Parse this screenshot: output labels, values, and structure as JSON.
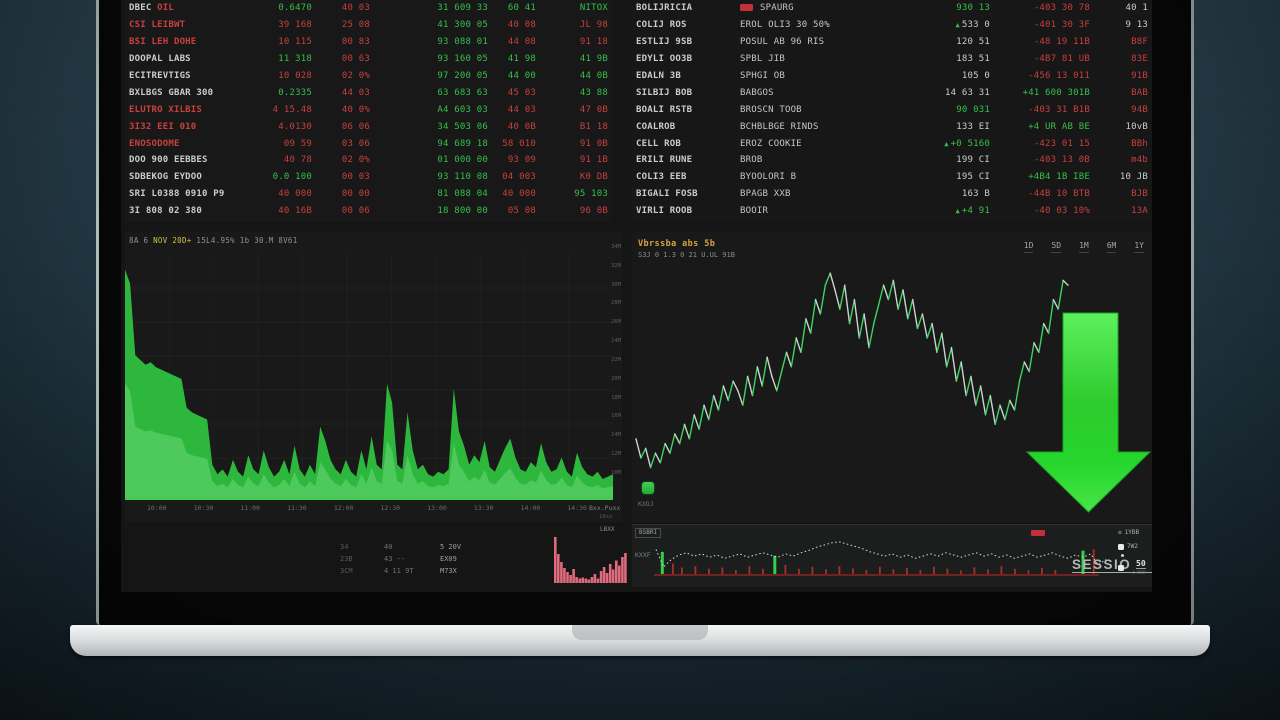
{
  "scene": {
    "bg_top": "#2c4553",
    "bg_bottom": "#15232c",
    "laptop_deck": "#d6dadb"
  },
  "colors": {
    "green": "#35c04a",
    "red": "#c8403f",
    "white": "#c9cec9",
    "accent_orange": "#d9a33c",
    "arrow_green": "#2ecb2e",
    "pink": "#df6b7c"
  },
  "left_watchlist": {
    "rows": [
      {
        "name": "DBEC",
        "name_hl": " OIL",
        "name_c": "w",
        "cells": [
          [
            "0.6470",
            "g"
          ],
          [
            "40 03",
            "r"
          ],
          [
            "31 609 33",
            "g"
          ],
          [
            "60 41",
            "g"
          ],
          [
            "NITOX",
            "g"
          ]
        ]
      },
      {
        "name": "CSI LEIBWT",
        "name_c": "r",
        "cells": [
          [
            "39 168",
            "r"
          ],
          [
            "25 08",
            "r"
          ],
          [
            "41 300 05",
            "g"
          ],
          [
            "40 08",
            "r"
          ],
          [
            "JL 98",
            "r"
          ]
        ]
      },
      {
        "name": "BSI LEH DOHE",
        "name_c": "r",
        "cells": [
          [
            "10 115",
            "r"
          ],
          [
            "00 83",
            "r"
          ],
          [
            "93 088 01",
            "g"
          ],
          [
            "44 08",
            "r"
          ],
          [
            "91 18",
            "r"
          ]
        ]
      },
      {
        "name": "DOOPAL LABS",
        "name_c": "w",
        "cells": [
          [
            "11 318",
            "g"
          ],
          [
            "00 63",
            "r"
          ],
          [
            "93 160 05",
            "g"
          ],
          [
            "41 98",
            "g"
          ],
          [
            "41 9B",
            "g"
          ]
        ]
      },
      {
        "name": "ECITREVTIGS",
        "name_c": "w",
        "cells": [
          [
            "10 028",
            "r"
          ],
          [
            "02 0%",
            "r"
          ],
          [
            "97 200 05",
            "g"
          ],
          [
            "44 00",
            "g"
          ],
          [
            "44 0B",
            "g"
          ]
        ]
      },
      {
        "name": "BXLBGS GBAR 300",
        "name_c": "w",
        "cells": [
          [
            "0.2335",
            "g"
          ],
          [
            "44 03",
            "r"
          ],
          [
            "63 683 63",
            "g"
          ],
          [
            "45 03",
            "r"
          ],
          [
            "43 88",
            "g"
          ]
        ]
      },
      {
        "name": "ELUTRO XILBIS",
        "name_c": "r",
        "cells": [
          [
            "4 15.48",
            "r"
          ],
          [
            "40 0%",
            "r"
          ],
          [
            "A4 603 03",
            "g"
          ],
          [
            "44 03",
            "r"
          ],
          [
            "47 0B",
            "r"
          ]
        ]
      },
      {
        "name": "3I32 EEI 010",
        "name_c": "r",
        "cells": [
          [
            "4.0130",
            "r"
          ],
          [
            "06 06",
            "r"
          ],
          [
            "34 503 06",
            "g"
          ],
          [
            "40 0B",
            "r"
          ],
          [
            "B1 18",
            "r"
          ]
        ]
      },
      {
        "name": "ENOSODOME",
        "name_c": "r",
        "cells": [
          [
            "09 59",
            "r"
          ],
          [
            "03 06",
            "r"
          ],
          [
            "94 689 18",
            "g"
          ],
          [
            "58 010",
            "r"
          ],
          [
            "91 0B",
            "r"
          ]
        ]
      },
      {
        "name": "DOO 900 EEBBES",
        "name_c": "w",
        "cells": [
          [
            "40 78",
            "r"
          ],
          [
            "02 0%",
            "r"
          ],
          [
            "01 000 00",
            "g"
          ],
          [
            "93 09",
            "r"
          ],
          [
            "91 1B",
            "r"
          ]
        ]
      },
      {
        "name": "SDBEKOG EYDOO",
        "name_c": "w",
        "cells": [
          [
            "0.0 100",
            "g"
          ],
          [
            "00 03",
            "r"
          ],
          [
            "93 110 08",
            "g"
          ],
          [
            "04 003",
            "r"
          ],
          [
            "K0 DB",
            "r"
          ]
        ]
      },
      {
        "name": "SRI L0388 0910 P9",
        "name_c": "w",
        "cells": [
          [
            "40 000",
            "r"
          ],
          [
            "00 00",
            "r"
          ],
          [
            "81 088 04",
            "g"
          ],
          [
            "40 000",
            "r"
          ],
          [
            "95 103",
            "g"
          ]
        ]
      },
      {
        "name": "3I 808 02 380",
        "name_c": "w",
        "cells": [
          [
            "40 16B",
            "r"
          ],
          [
            "00 06",
            "r"
          ],
          [
            "18 800 00",
            "g"
          ],
          [
            "05 08",
            "r"
          ],
          [
            "96 0B",
            "r"
          ]
        ]
      }
    ]
  },
  "right_watchlist": {
    "rows": [
      {
        "name": "BOLIJRICIA",
        "badge": true,
        "desc": "SPAURG",
        "price": [
          "930 13",
          "g"
        ],
        "marker": false,
        "chg": [
          "-403 30 78",
          "r"
        ],
        "pct": [
          "40 1",
          "w"
        ]
      },
      {
        "name": "COLIJ ROS",
        "badge": false,
        "desc": "EROL OLI3 30 50%",
        "price": [
          "533 0",
          "w"
        ],
        "marker": true,
        "chg": [
          "-401 30 3F",
          "r"
        ],
        "pct": [
          "9 13",
          "w"
        ]
      },
      {
        "name": "ESTLIJ 9SB",
        "badge": false,
        "desc": "POSUL AB 96 RIS",
        "price": [
          "120 51",
          "w"
        ],
        "marker": false,
        "chg": [
          "-48 19 11B",
          "r"
        ],
        "pct": [
          "B8F",
          "r"
        ]
      },
      {
        "name": "EDYLI OO3B",
        "badge": false,
        "desc": "SPBL JIB",
        "price": [
          "183 51",
          "w"
        ],
        "marker": false,
        "chg": [
          "-4B7 81 UB",
          "r"
        ],
        "pct": [
          "83E",
          "r"
        ]
      },
      {
        "name": "EDALN 3B",
        "badge": false,
        "desc": "SPHGI OB",
        "price": [
          "105 0",
          "w"
        ],
        "marker": false,
        "chg": [
          "-456 13 011",
          "r"
        ],
        "pct": [
          "91B",
          "r"
        ]
      },
      {
        "name": "SILBIJ BOB",
        "badge": false,
        "desc": "BABGOS",
        "price": [
          "14 63 31",
          "w"
        ],
        "marker": false,
        "chg": [
          "+41 600 301B",
          "g"
        ],
        "pct": [
          "BAB",
          "r"
        ]
      },
      {
        "name": "BOALI RSTB",
        "badge": false,
        "desc": "BROSCN TOOB",
        "price": [
          "90 031",
          "g"
        ],
        "marker": false,
        "chg": [
          "-403 31 B1B",
          "r"
        ],
        "pct": [
          "94B",
          "r"
        ]
      },
      {
        "name": "COALROB",
        "badge": false,
        "desc": "BCHBLBGE RINDS",
        "price": [
          "133 EI",
          "w"
        ],
        "marker": false,
        "chg": [
          "+4 UR AB BE",
          "g"
        ],
        "pct": [
          "10vB",
          "w"
        ]
      },
      {
        "name": "CELL ROB",
        "badge": false,
        "desc": "EROZ COOKIE",
        "price": [
          "+0 5160",
          "g"
        ],
        "marker": true,
        "chg": [
          "-423 01 15",
          "r"
        ],
        "pct": [
          "BBh",
          "r"
        ]
      },
      {
        "name": "ERILI RUNE",
        "badge": false,
        "desc": "BROB",
        "price": [
          "199 CI",
          "w"
        ],
        "marker": false,
        "chg": [
          "-403 13 0B",
          "r"
        ],
        "pct": [
          "m4b",
          "r"
        ]
      },
      {
        "name": "COLI3 EEB",
        "badge": false,
        "desc": "BYOOLORI B",
        "price": [
          "195 CI",
          "w"
        ],
        "marker": false,
        "chg": [
          "+4B4 1B IBE",
          "g"
        ],
        "pct": [
          "10 JB",
          "w"
        ]
      },
      {
        "name": "BIGALI FOSB",
        "badge": false,
        "desc": "BPAGB XXB",
        "price": [
          "163 B",
          "w"
        ],
        "marker": false,
        "chg": [
          "-44B 10 BTB",
          "r"
        ],
        "pct": [
          "BJB",
          "r"
        ]
      },
      {
        "name": "VIRLI ROOB",
        "badge": false,
        "desc": "BOOIR",
        "price": [
          "+4 91",
          "g"
        ],
        "marker": true,
        "chg": [
          "-40 03 10%",
          "r"
        ],
        "pct": [
          "13A",
          "r"
        ]
      }
    ]
  },
  "left_chart": {
    "title_prefix": "8A 6 ",
    "title_hl": "NOV 20D+",
    "title_rest": " 15L4.95% 1b 30.M 8V61",
    "x_labels": [
      "10:00",
      "10:30",
      "11:00",
      "11:30",
      "12:00",
      "12:30",
      "13:00",
      "13:30",
      "14:00",
      "14:30"
    ],
    "x_end_label": "Bxx.Puxx",
    "x_end_sub": "18xx",
    "y_ticks": [
      "34M",
      "32M",
      "30M",
      "28M",
      "26M",
      "24M",
      "22M",
      "20M",
      "18M",
      "16M",
      "14M",
      "12M",
      "10M"
    ]
  },
  "right_chart": {
    "title": "Vbrssba abs 5b",
    "subtitle": "S3J 0 1.3 0 21 U.UL 91B",
    "ranges": [
      "1D",
      "5D",
      "1M",
      "6M",
      "1Y"
    ],
    "logo_label": "KXDJ"
  },
  "bottom_left": {
    "corner_label": "LBXX",
    "stats": [
      [
        "34",
        "40",
        "5 20V"
      ],
      [
        "23B",
        "43 --",
        "EX09"
      ],
      [
        "3CM",
        "4 11 9T",
        "M73X"
      ]
    ]
  },
  "bottom_right": {
    "tag": "BSBRI",
    "axis_label": "KXXF",
    "session_text": "SESSIO",
    "side_top": "1YBB",
    "side_mid": "7W2",
    "side_num": "50",
    "side_num_sub": "4 RXX"
  },
  "chart_data": [
    {
      "id": "intraday-volume",
      "type": "area",
      "title": "8A 6 NOV 20D+ 15L4.95% 1b 30.M 8V61",
      "xlabel": "time",
      "ylabel": "volume",
      "grid": true,
      "color": "#2db83d",
      "x_labels": [
        "10:00",
        "10:30",
        "11:00",
        "11:30",
        "12:00",
        "12:30",
        "13:00",
        "13:30",
        "14:00",
        "14:30"
      ],
      "values_pct": [
        96,
        90,
        60,
        58,
        56,
        57,
        55,
        54,
        53,
        52,
        51,
        50,
        38,
        36,
        35,
        34,
        33,
        14,
        10,
        12,
        9,
        16,
        11,
        9,
        18,
        12,
        10,
        20,
        13,
        9,
        11,
        16,
        10,
        22,
        12,
        9,
        14,
        10,
        30,
        24,
        16,
        12,
        10,
        16,
        11,
        9,
        20,
        12,
        26,
        14,
        12,
        48,
        40,
        14,
        12,
        36,
        20,
        12,
        14,
        10,
        9,
        11,
        10,
        12,
        46,
        28,
        22,
        14,
        18,
        15,
        24,
        13,
        11,
        16,
        21,
        25,
        17,
        12,
        11,
        15,
        13,
        23,
        15,
        11,
        12,
        17,
        11,
        9,
        19,
        13,
        10,
        9,
        11,
        8,
        9,
        10
      ]
    },
    {
      "id": "price-line",
      "type": "line",
      "title": "Vbrssba abs 5b",
      "up_color": "#3ed363",
      "down_color": "#ccd4ce",
      "values_pct": [
        72,
        80,
        76,
        84,
        78,
        82,
        74,
        78,
        70,
        74,
        66,
        72,
        62,
        68,
        58,
        64,
        54,
        60,
        50,
        56,
        48,
        52,
        58,
        46,
        54,
        42,
        50,
        38,
        46,
        52,
        44,
        36,
        42,
        30,
        36,
        22,
        28,
        14,
        20,
        8,
        3,
        10,
        18,
        8,
        24,
        14,
        30,
        20,
        34,
        24,
        16,
        8,
        14,
        6,
        18,
        10,
        22,
        14,
        26,
        20,
        30,
        24,
        36,
        28,
        42,
        34,
        48,
        40,
        54,
        46,
        58,
        50,
        62,
        54,
        66,
        58,
        64,
        56,
        60,
        48,
        40,
        44,
        32,
        36,
        24,
        28,
        14,
        18,
        6,
        8
      ]
    },
    {
      "id": "session-sparkline",
      "type": "line+bars",
      "line_color": "#d7dedb",
      "line_pct": [
        30,
        62,
        48,
        40,
        36,
        42,
        38,
        44,
        40,
        46,
        42,
        38,
        44,
        40,
        36,
        40,
        44,
        38,
        42,
        36,
        32,
        26,
        22,
        18,
        16,
        20,
        24,
        28,
        34,
        38,
        42,
        38,
        44,
        40,
        46,
        42,
        38,
        42,
        36,
        40,
        44,
        40,
        36,
        42,
        38,
        44,
        40,
        46,
        42,
        38,
        44,
        40,
        36,
        42,
        46,
        40,
        44,
        38,
        58,
        48
      ],
      "bars": [
        [
          1.5,
          85,
          "g"
        ],
        [
          4,
          40,
          "r"
        ],
        [
          6,
          25,
          "r"
        ],
        [
          9,
          30,
          "r"
        ],
        [
          12,
          20,
          "r"
        ],
        [
          15,
          25,
          "r"
        ],
        [
          18,
          15,
          "r"
        ],
        [
          21,
          30,
          "r"
        ],
        [
          24,
          20,
          "r"
        ],
        [
          26.5,
          70,
          "g"
        ],
        [
          29,
          35,
          "r"
        ],
        [
          32,
          20,
          "r"
        ],
        [
          35,
          28,
          "r"
        ],
        [
          38,
          18,
          "r"
        ],
        [
          41,
          30,
          "r"
        ],
        [
          44,
          22,
          "r"
        ],
        [
          47,
          15,
          "r"
        ],
        [
          50,
          28,
          "r"
        ],
        [
          53,
          18,
          "r"
        ],
        [
          56,
          24,
          "r"
        ],
        [
          59,
          16,
          "r"
        ],
        [
          62,
          28,
          "r"
        ],
        [
          65,
          20,
          "r"
        ],
        [
          68,
          14,
          "r"
        ],
        [
          71,
          26,
          "r"
        ],
        [
          74,
          18,
          "r"
        ],
        [
          77,
          30,
          "r"
        ],
        [
          80,
          20,
          "r"
        ],
        [
          83,
          14,
          "r"
        ],
        [
          86,
          24,
          "r"
        ],
        [
          89,
          16,
          "r"
        ],
        [
          95,
          90,
          "g"
        ],
        [
          97.5,
          95,
          "r"
        ]
      ]
    },
    {
      "id": "mini-pink",
      "type": "bar",
      "color": "#df6b7c",
      "values_pct": [
        92,
        58,
        42,
        30,
        22,
        16,
        28,
        12,
        9,
        11,
        9,
        7,
        12,
        18,
        9,
        24,
        32,
        20,
        38,
        27,
        45,
        35,
        52,
        60
      ]
    }
  ]
}
